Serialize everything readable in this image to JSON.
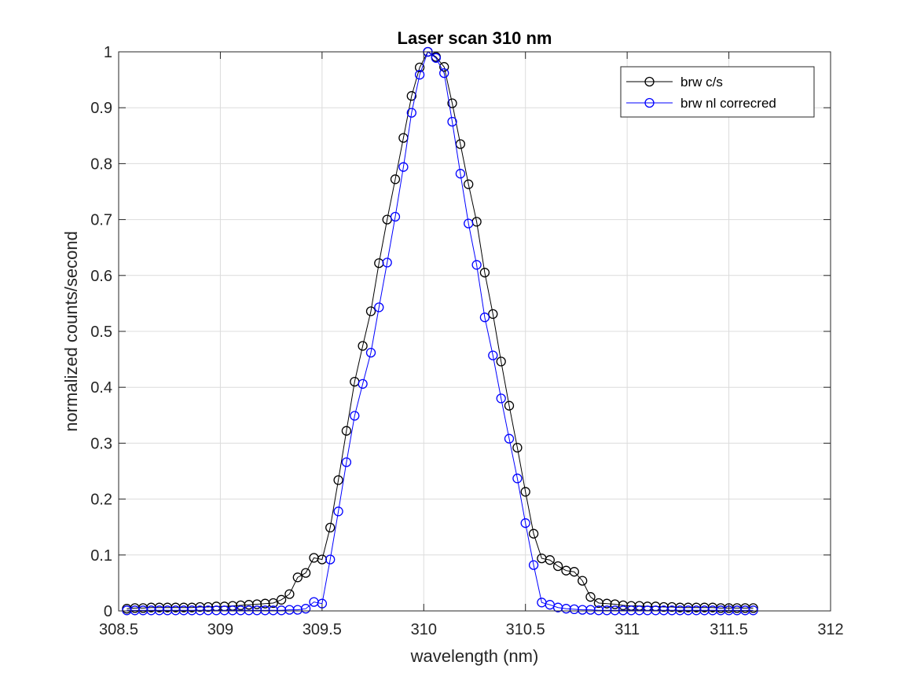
{
  "chart_data": {
    "type": "line",
    "title": "Laser scan 310 nm",
    "xlabel": "wavelength (nm)",
    "ylabel": "normalized counts/second",
    "xlim": [
      308.5,
      312
    ],
    "ylim": [
      0,
      1
    ],
    "xticks": [
      308.5,
      309,
      309.5,
      310,
      310.5,
      311,
      311.5,
      312
    ],
    "xtick_labels": [
      "308.5",
      "309",
      "309.5",
      "310",
      "310.5",
      "311",
      "311.5",
      "312"
    ],
    "yticks": [
      0,
      0.1,
      0.2,
      0.3,
      0.4,
      0.5,
      0.6,
      0.7,
      0.8,
      0.9,
      1
    ],
    "ytick_labels": [
      "0",
      "0.1",
      "0.2",
      "0.3",
      "0.4",
      "0.5",
      "0.6",
      "0.7",
      "0.8",
      "0.9",
      "1"
    ],
    "grid": true,
    "legend_position": "top-right",
    "x": [
      308.54,
      308.58,
      308.62,
      308.66,
      308.7,
      308.74,
      308.78,
      308.82,
      308.86,
      308.9,
      308.94,
      308.98,
      309.02,
      309.06,
      309.1,
      309.14,
      309.18,
      309.22,
      309.26,
      309.3,
      309.34,
      309.38,
      309.42,
      309.46,
      309.5,
      309.54,
      309.58,
      309.62,
      309.66,
      309.7,
      309.74,
      309.78,
      309.82,
      309.86,
      309.9,
      309.94,
      309.98,
      310.02,
      310.06,
      310.1,
      310.14,
      310.18,
      310.22,
      310.26,
      310.3,
      310.34,
      310.38,
      310.42,
      310.46,
      310.5,
      310.54,
      310.58,
      310.62,
      310.66,
      310.7,
      310.74,
      310.78,
      310.82,
      310.86,
      310.9,
      310.94,
      310.98,
      311.02,
      311.06,
      311.1,
      311.14,
      311.18,
      311.22,
      311.26,
      311.3,
      311.34,
      311.38,
      311.42,
      311.46,
      311.5,
      311.54,
      311.58,
      311.62
    ],
    "series": [
      {
        "name": "brw c/s",
        "color": "#000000",
        "marker": "circle",
        "values": [
          0.004,
          0.005,
          0.005,
          0.006,
          0.006,
          0.006,
          0.006,
          0.006,
          0.006,
          0.007,
          0.007,
          0.008,
          0.008,
          0.009,
          0.01,
          0.011,
          0.012,
          0.013,
          0.014,
          0.02,
          0.03,
          0.06,
          0.068,
          0.095,
          0.092,
          0.149,
          0.234,
          0.322,
          0.41,
          0.474,
          0.536,
          0.622,
          0.7,
          0.772,
          0.846,
          0.921,
          0.972,
          1.0,
          0.991,
          0.973,
          0.908,
          0.835,
          0.763,
          0.696,
          0.605,
          0.531,
          0.446,
          0.367,
          0.292,
          0.213,
          0.138,
          0.094,
          0.091,
          0.08,
          0.072,
          0.07,
          0.054,
          0.025,
          0.014,
          0.013,
          0.012,
          0.01,
          0.009,
          0.009,
          0.008,
          0.008,
          0.007,
          0.007,
          0.006,
          0.006,
          0.006,
          0.006,
          0.006,
          0.005,
          0.005,
          0.005,
          0.005,
          0.005
        ]
      },
      {
        "name": "brw nl correcred",
        "color": "#0000ff",
        "marker": "circle",
        "values": [
          0.001,
          0.001,
          0.001,
          0.001,
          0.001,
          0.001,
          0.001,
          0.001,
          0.001,
          0.001,
          0.001,
          0.001,
          0.001,
          0.001,
          0.001,
          0.001,
          0.001,
          0.001,
          0.001,
          0.001,
          0.002,
          0.002,
          0.004,
          0.016,
          0.013,
          0.092,
          0.178,
          0.266,
          0.349,
          0.406,
          0.462,
          0.543,
          0.623,
          0.705,
          0.794,
          0.891,
          0.959,
          1.0,
          0.989,
          0.962,
          0.875,
          0.782,
          0.693,
          0.619,
          0.525,
          0.457,
          0.38,
          0.308,
          0.237,
          0.157,
          0.082,
          0.015,
          0.011,
          0.006,
          0.004,
          0.003,
          0.002,
          0.002,
          0.001,
          0.001,
          0.001,
          0.001,
          0.001,
          0.001,
          0.001,
          0.001,
          0.001,
          0.001,
          0.001,
          0.001,
          0.001,
          0.001,
          0.001,
          0.001,
          0.001,
          0.001,
          0.001,
          0.001
        ]
      }
    ]
  }
}
